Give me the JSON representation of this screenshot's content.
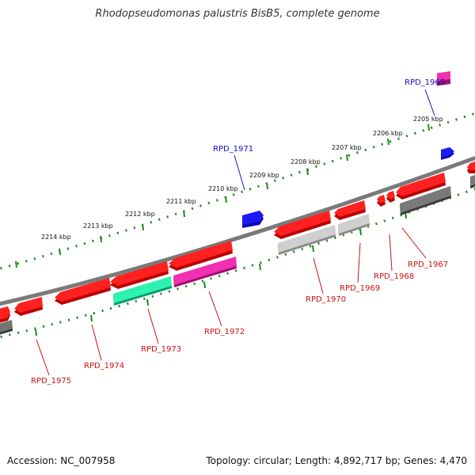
{
  "title": "Rhodopseudomonas palustris BisB5, complete genome",
  "footer": {
    "accession": "Accession: NC_007958",
    "summary": "Topology: circular; Length: 4,892,717 bp; Genes: 4,470"
  },
  "colors": {
    "forward_gene": "#ff0000",
    "reverse_gene": "#ff0000",
    "gray_gene": "#c0c0c0",
    "dark_gene": "#707070",
    "teal_gene": "#19e8a0",
    "magenta_gene": "#e8149b",
    "blue_gene": "#0b19f0",
    "backbone": "#7a7a7a",
    "ticks": "#1a8a1a",
    "label_forward": "#1010c0",
    "label_reverse": "#d01010"
  },
  "scale_labels": [
    "2205 kbp",
    "2206 kbp",
    "2207 kbp",
    "2208 kbp",
    "2209 kbp",
    "2210 kbp",
    "2211 kbp",
    "2212 kbp",
    "2213 kbp",
    "2214 kbp"
  ],
  "gene_labels": {
    "forward": [
      "RPD_1965",
      "RPD_1971"
    ],
    "reverse": [
      "RPD_1967",
      "RPD_1968",
      "RPD_1969",
      "RPD_1970",
      "RPD_1972",
      "RPD_1973",
      "RPD_1974",
      "RPD_1975"
    ]
  }
}
